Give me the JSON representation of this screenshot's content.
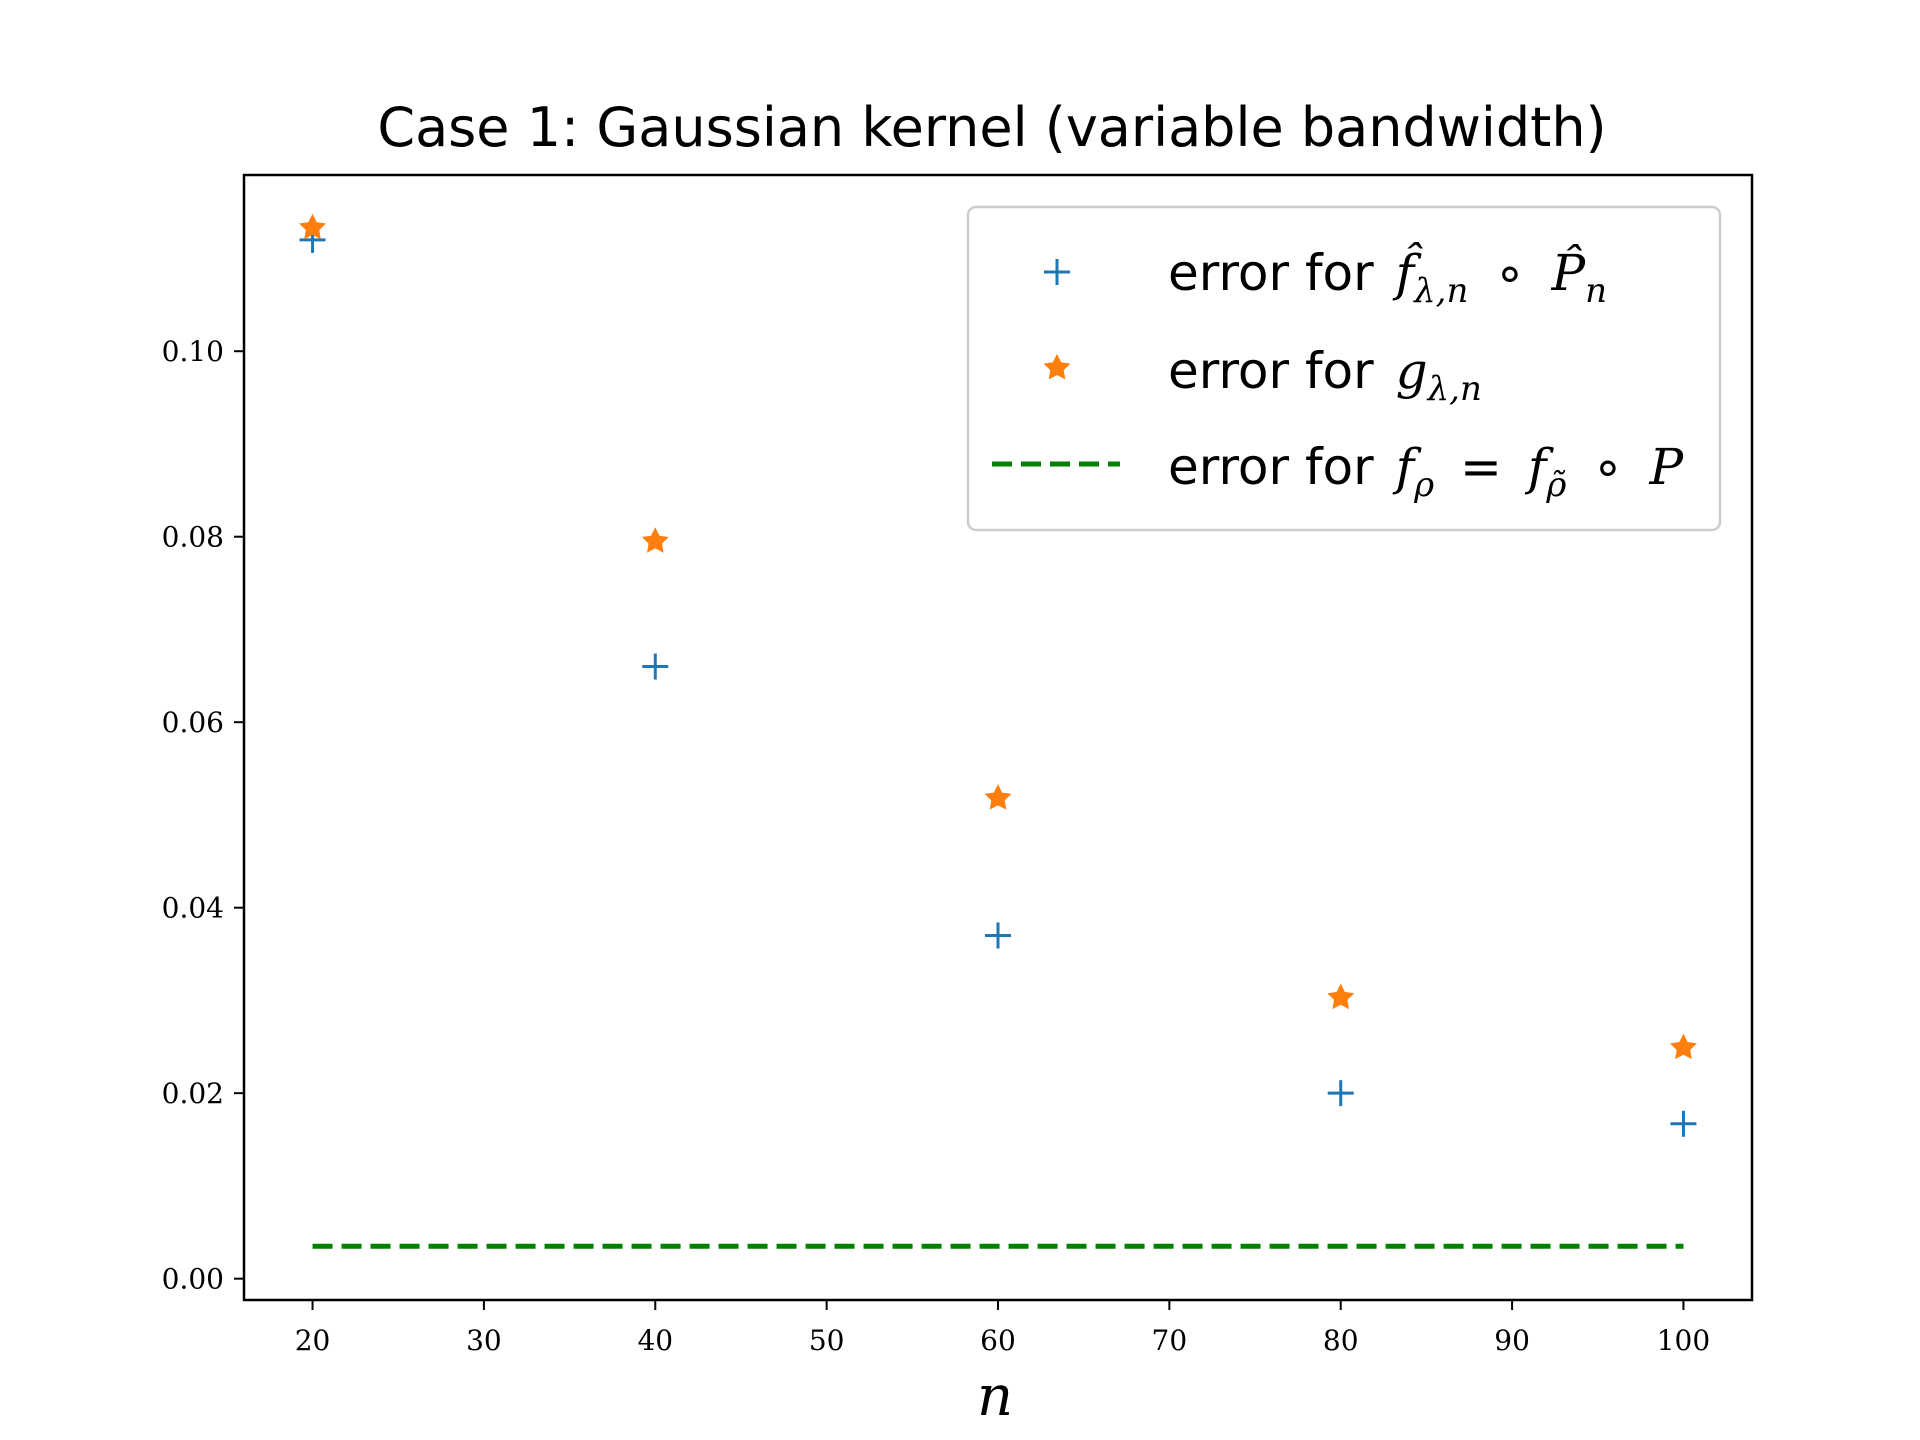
{
  "chart_data": {
    "type": "scatter",
    "title": "Case 1:  Gaussian kernel (variable bandwidth)",
    "xlabel": "n",
    "ylabel": "",
    "xlim": [
      16,
      104
    ],
    "ylim": [
      -0.0023,
      0.119
    ],
    "xticks": [
      20,
      30,
      40,
      50,
      60,
      70,
      80,
      90,
      100
    ],
    "xtick_labels": [
      "20",
      "30",
      "40",
      "50",
      "60",
      "70",
      "80",
      "90",
      "100"
    ],
    "yticks": [
      0.0,
      0.02,
      0.04,
      0.06,
      0.08,
      0.1
    ],
    "ytick_labels": [
      "0.00",
      "0.02",
      "0.04",
      "0.06",
      "0.08",
      "0.10"
    ],
    "legend_position": "upper-right",
    "grid": false,
    "series": [
      {
        "name": "error for f̂λ,n ∘ P̂n",
        "marker": "plus",
        "color": "#1f77b4",
        "x": [
          20,
          40,
          60,
          80,
          100
        ],
        "y": [
          0.112,
          0.066,
          0.037,
          0.02,
          0.0167
        ]
      },
      {
        "name": "error for gλ,n",
        "marker": "star",
        "color": "#ff7f0e",
        "x": [
          20,
          40,
          60,
          80,
          100
        ],
        "y": [
          0.1133,
          0.0795,
          0.0518,
          0.0303,
          0.0249
        ]
      },
      {
        "name": "error for fρ = fρ̃ ∘ P",
        "marker": "dashed-line",
        "color": "#008000",
        "x": [
          20,
          100
        ],
        "y": [
          0.0035,
          0.0035
        ]
      }
    ]
  }
}
